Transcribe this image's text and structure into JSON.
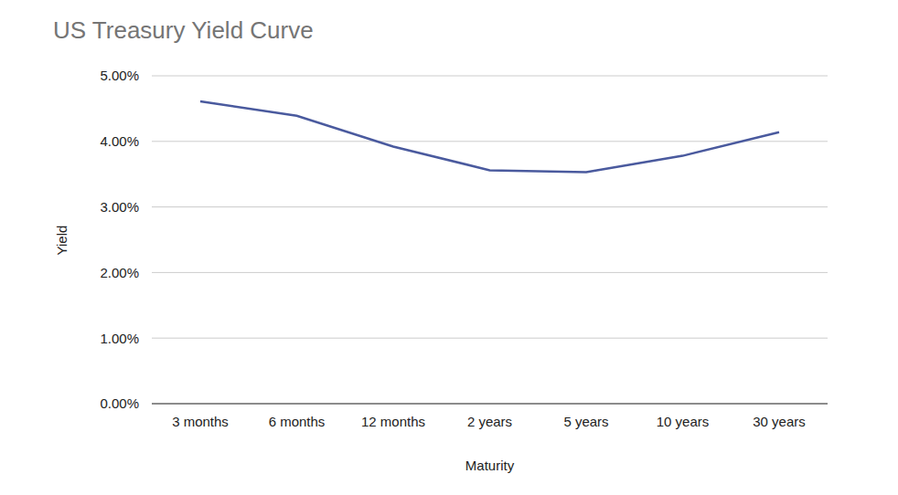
{
  "chart_data": {
    "type": "line",
    "title": "US Treasury Yield Curve",
    "x_label": "Maturity",
    "y_label": "Yield",
    "categories": [
      "3 months",
      "6 months",
      "12 months",
      "2 years",
      "5 years",
      "10 years",
      "30 years"
    ],
    "values": [
      4.61,
      4.39,
      3.92,
      3.56,
      3.53,
      3.78,
      4.14
    ],
    "color": "#4a5a9e",
    "ylim": [
      0,
      5
    ],
    "yticks": [
      {
        "value": 0,
        "label": "0.00%"
      },
      {
        "value": 1,
        "label": "1.00%"
      },
      {
        "value": 2,
        "label": "2.00%"
      },
      {
        "value": 3,
        "label": "3.00%"
      },
      {
        "value": 4,
        "label": "4.00%"
      },
      {
        "value": 5,
        "label": "5.00%"
      }
    ],
    "grid": true
  }
}
